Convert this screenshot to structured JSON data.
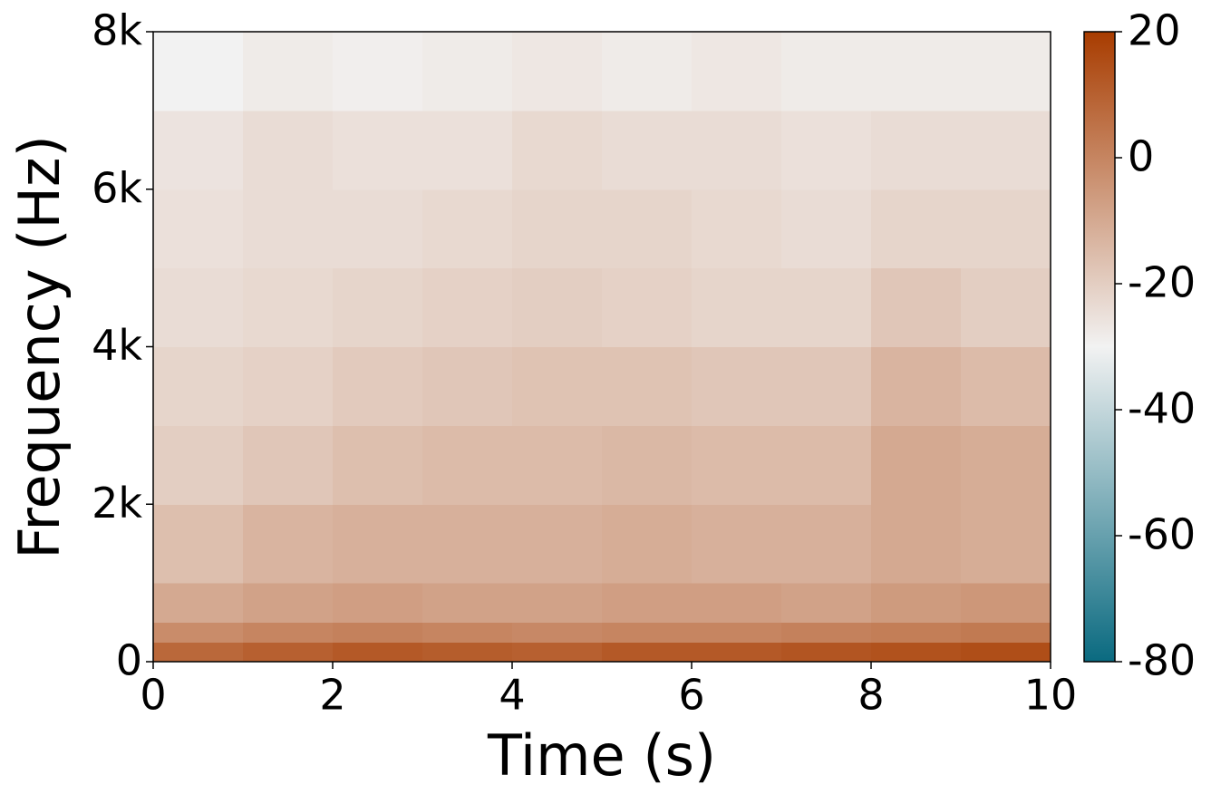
{
  "chart_data": {
    "type": "heatmap",
    "x_label": "Time (s)",
    "y_label": "Frequency (Hz)",
    "x": [
      0,
      1,
      2,
      3,
      4,
      5,
      6,
      7,
      8,
      9,
      10
    ],
    "y": [
      0,
      250,
      500,
      1000,
      2000,
      3000,
      4000,
      5000,
      6000,
      7000,
      8000
    ],
    "z": [
      [
        8,
        10,
        12,
        11,
        10,
        12,
        12,
        13,
        14,
        15
      ],
      [
        -2,
        0,
        1,
        0,
        -1,
        0,
        0,
        1,
        2,
        3
      ],
      [
        -10,
        -8,
        -7,
        -8,
        -8,
        -7,
        -7,
        -8,
        -6,
        -5
      ],
      [
        -16,
        -13,
        -12,
        -12,
        -12,
        -11,
        -12,
        -12,
        -10,
        -11
      ],
      [
        -20,
        -18,
        -16,
        -15,
        -15,
        -14,
        -15,
        -15,
        -10,
        -11
      ],
      [
        -22,
        -21,
        -19,
        -18,
        -17,
        -17,
        -18,
        -18,
        -13,
        -15
      ],
      [
        -24,
        -23,
        -22,
        -21,
        -20,
        -21,
        -22,
        -22,
        -18,
        -20
      ],
      [
        -25,
        -24,
        -24,
        -23,
        -22,
        -22,
        -23,
        -24,
        -22,
        -22
      ],
      [
        -26,
        -24,
        -25,
        -25,
        -23,
        -24,
        -24,
        -25,
        -24,
        -24
      ],
      [
        -30,
        -28,
        -29,
        -28,
        -27,
        -28,
        -27,
        -28,
        -28,
        -28
      ]
    ],
    "xlim": [
      0,
      10
    ],
    "xticks": [
      0,
      2,
      4,
      6,
      8,
      10
    ],
    "ylim": [
      0,
      8000
    ],
    "yticks": [
      0,
      {
        "value": 2000,
        "label": "2k"
      },
      {
        "value": 4000,
        "label": "4k"
      },
      {
        "value": 6000,
        "label": "6k"
      },
      {
        "value": 8000,
        "label": "8k"
      }
    ],
    "colors": [
      "#0a6a80",
      "#f2f2f2",
      "#a83c00"
    ],
    "clim": [
      -80,
      20
    ],
    "cticks": [
      20,
      0,
      -20,
      -40,
      -60,
      -80
    ]
  }
}
